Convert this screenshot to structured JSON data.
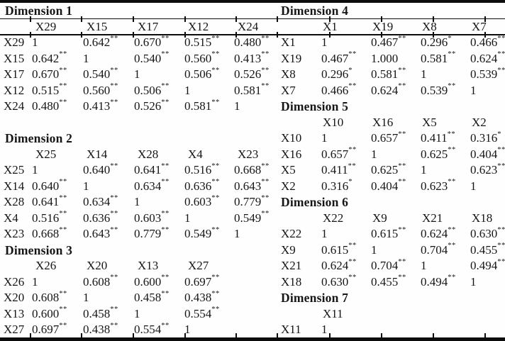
{
  "document": {
    "kind": "correlation-matrix-table",
    "significance_marks": {
      "double": "**",
      "single": "*"
    },
    "text_color": "#161616",
    "rule_color": "#0c0c0c",
    "left_sections": [
      {
        "kind": "matrix",
        "title": "Dimension 1",
        "headers": [
          "X29",
          "X15",
          "X17",
          "X12",
          "X24"
        ],
        "rows": [
          {
            "label": "X29",
            "cells": [
              "1",
              "0.642**",
              "0.670**",
              "0.515**",
              "0.480**"
            ]
          },
          {
            "label": "X15",
            "cells": [
              "0.642**",
              "1",
              "0.540**",
              "0.560**",
              "0.413**"
            ]
          },
          {
            "label": "X17",
            "cells": [
              "0.670**",
              "0.540**",
              "1",
              "0.506**",
              "0.526**"
            ]
          },
          {
            "label": "X12",
            "cells": [
              "0.515**",
              "0.560**",
              "0.506**",
              "1",
              "0.581**"
            ]
          },
          {
            "label": "X24",
            "cells": [
              "0.480**",
              "0.413**",
              "0.526**",
              "0.581**",
              "1"
            ]
          }
        ]
      },
      {
        "kind": "spacer"
      },
      {
        "kind": "matrix",
        "title": "Dimension 2",
        "headers": [
          "X25",
          "X14",
          "X28",
          "X4",
          "X23"
        ],
        "rows": [
          {
            "label": "X25",
            "cells": [
              "1",
              "0.640**",
              "0.641**",
              "0.516**",
              "0.668**"
            ]
          },
          {
            "label": "X14",
            "cells": [
              "0.640**",
              "1",
              "0.634**",
              "0.636**",
              "0.643**"
            ]
          },
          {
            "label": "X28",
            "cells": [
              "0.641**",
              "0.634**",
              "1",
              "0.603**",
              "0.779**"
            ]
          },
          {
            "label": "X4",
            "cells": [
              "0.516**",
              "0.636**",
              "0.603**",
              "1",
              "0.549**"
            ]
          },
          {
            "label": "X23",
            "cells": [
              "0.668**",
              "0.643**",
              "0.779**",
              "0.549**",
              "1"
            ]
          }
        ]
      },
      {
        "kind": "matrix",
        "title": "Dimension 3",
        "headers": [
          "X26",
          "X20",
          "X13",
          "X27"
        ],
        "rows": [
          {
            "label": "X26",
            "cells": [
              "1",
              "0.608**",
              "0.600**",
              "0.697**"
            ]
          },
          {
            "label": "X20",
            "cells": [
              "0.608**",
              "1",
              "0.458**",
              "0.438**"
            ]
          },
          {
            "label": "X13",
            "cells": [
              "0.600**",
              "0.458**",
              "1",
              "0.554**"
            ]
          },
          {
            "label": "X27",
            "cells": [
              "0.697**",
              "0.438**",
              "0.554**",
              "1"
            ]
          }
        ]
      }
    ],
    "right_sections": [
      {
        "kind": "matrix",
        "title": "Dimension 4",
        "headers": [
          "X1",
          "X19",
          "X8",
          "X7"
        ],
        "rows": [
          {
            "label": "X1",
            "cells": [
              "1",
              "0.467**",
              "0.296*",
              "0.466**"
            ]
          },
          {
            "label": "X19",
            "cells": [
              "0.467**",
              "1.000",
              "0.581**",
              "0.624**"
            ]
          },
          {
            "label": "X8",
            "cells": [
              "0.296*",
              "0.581**",
              "1",
              "0.539**"
            ]
          },
          {
            "label": "X7",
            "cells": [
              "0.466**",
              "0.624**",
              "0.539**",
              "1"
            ]
          }
        ]
      },
      {
        "kind": "matrix",
        "title": "Dimension 5",
        "headers": [
          "X10",
          "X16",
          "X5",
          "X2"
        ],
        "rows": [
          {
            "label": "X10",
            "cells": [
              "1",
              "0.657**",
              "0.411**",
              "0.316*"
            ]
          },
          {
            "label": "X16",
            "cells": [
              "0.657**",
              "1",
              "0.625**",
              "0.404**"
            ]
          },
          {
            "label": "X5",
            "cells": [
              "0.411**",
              "0.625**",
              "1",
              "0.623**"
            ]
          },
          {
            "label": "X2",
            "cells": [
              "0.316*",
              "0.404**",
              "0.623**",
              "1"
            ]
          }
        ]
      },
      {
        "kind": "matrix",
        "title": "Dimension 6",
        "headers": [
          "X22",
          "X9",
          "X21",
          "X18"
        ],
        "rows": [
          {
            "label": "X22",
            "cells": [
              "1",
              "0.615**",
              "0.624**",
              "0.630**"
            ]
          },
          {
            "label": "X9",
            "cells": [
              "0.615**",
              "1",
              "0.704**",
              "0.455**"
            ]
          },
          {
            "label": "X21",
            "cells": [
              "0.624**",
              "0.704**",
              "1",
              "0.494**"
            ]
          },
          {
            "label": "X18",
            "cells": [
              "0.630**",
              "0.455**",
              "0.494**",
              "1"
            ]
          }
        ]
      },
      {
        "kind": "matrix",
        "title": "Dimension 7",
        "headers": [
          "X11"
        ],
        "rows": [
          {
            "label": "X11",
            "cells": [
              "1"
            ]
          }
        ]
      }
    ]
  }
}
